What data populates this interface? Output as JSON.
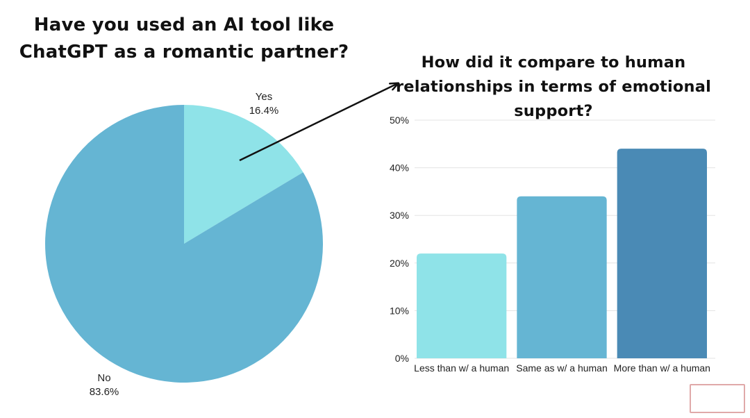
{
  "pie_title": "Have you used an AI tool like ChatGPT as a romantic partner?",
  "bar_title": "How did it compare to human relationships in terms of emotional support?",
  "colors": {
    "light": "#8fe3e8",
    "medium": "#65b5d3",
    "dark": "#4a8ab5",
    "grid": "#e3e3e3",
    "arrow": "#111111",
    "watermark": "#e0a9a9"
  },
  "chart_data": [
    {
      "type": "pie",
      "title": "Have you used an AI tool like ChatGPT as a romantic partner?",
      "slices": [
        {
          "label": "Yes",
          "value": 16.4,
          "value_label": "16.4%",
          "color": "#8fe3e8"
        },
        {
          "label": "No",
          "value": 83.6,
          "value_label": "83.6%",
          "color": "#65b5d3"
        }
      ]
    },
    {
      "type": "bar",
      "title": "How did it compare to human relationships in terms of emotional support?",
      "categories": [
        "Less than w/ a human",
        "Same as w/ a human",
        "More than w/ a human"
      ],
      "values": [
        22,
        34,
        44
      ],
      "colors": [
        "#8fe3e8",
        "#65b5d3",
        "#4a8ab5"
      ],
      "ylim": [
        0,
        50
      ],
      "yticks": [
        "0%",
        "10%",
        "20%",
        "30%",
        "40%",
        "50%"
      ],
      "grid": true,
      "xlabel": "",
      "ylabel": ""
    }
  ]
}
